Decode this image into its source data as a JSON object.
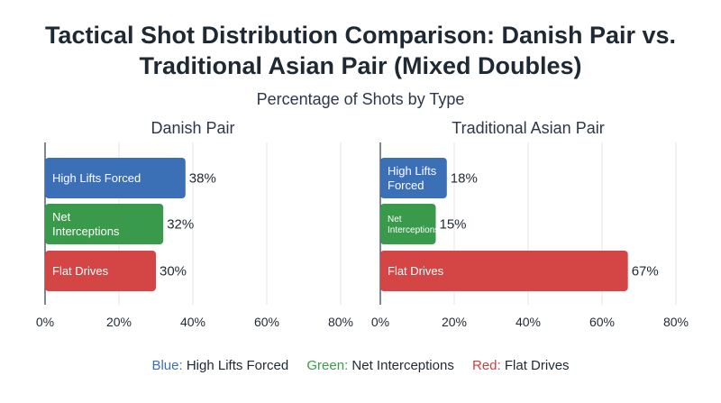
{
  "title_line1": "Tactical Shot Distribution Comparison: Danish Pair vs.",
  "title_line2": "Traditional Asian Pair (Mixed Doubles)",
  "subtitle": "Percentage of Shots by Type",
  "legend": {
    "blue_word": "Blue:",
    "blue_text": "High Lifts Forced",
    "green_word": "Green:",
    "green_text": "Net Interceptions",
    "red_word": "Red:",
    "red_text": "Flat Drives"
  },
  "colors": {
    "blue": "#3b6fb6",
    "green": "#3a9a4b",
    "red": "#d44646"
  },
  "chart_data": [
    {
      "type": "bar",
      "orientation": "horizontal",
      "title": "Danish Pair",
      "categories": [
        "High Lifts Forced",
        "Net Interceptions",
        "Flat Drives"
      ],
      "values": [
        38,
        32,
        30
      ],
      "value_labels": [
        "38%",
        "32%",
        "30%"
      ],
      "xlim": [
        0,
        80
      ],
      "xticks": [
        "0%",
        "20%",
        "40%",
        "60%",
        "80%"
      ],
      "grid": "vertical"
    },
    {
      "type": "bar",
      "orientation": "horizontal",
      "title": "Traditional Asian Pair",
      "categories": [
        "High Lifts Forced",
        "Net Interceptions",
        "Flat Drives"
      ],
      "values": [
        18,
        15,
        67
      ],
      "value_labels": [
        "18%",
        "15%",
        "67%"
      ],
      "xlim": [
        0,
        80
      ],
      "xticks": [
        "0%",
        "20%",
        "40%",
        "60%",
        "80%"
      ],
      "grid": "vertical"
    }
  ]
}
